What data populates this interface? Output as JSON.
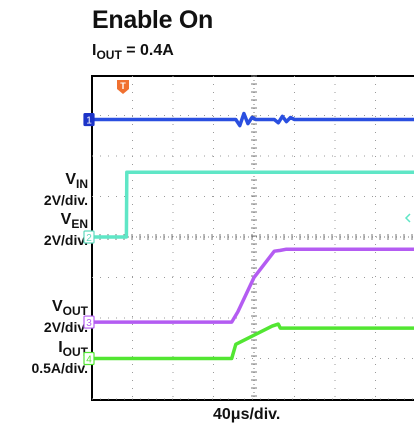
{
  "title": "Enable On",
  "subtitle": {
    "base": "I",
    "sub": "OUT",
    "rest": " = 0.4A"
  },
  "xlabel": "40μs/div.",
  "channels": [
    {
      "id": "ch1",
      "marker": "1",
      "base": "V",
      "sub": "IN",
      "scale": "2V/div.",
      "color": "#2a4fe0",
      "marker_color": "#1d34c8"
    },
    {
      "id": "ch2",
      "marker": "2",
      "base": "V",
      "sub": "EN",
      "scale": "2V/div.",
      "color": "#5fe6c6",
      "marker_color": "#5fd9bd"
    },
    {
      "id": "ch3",
      "marker": "3",
      "base": "V",
      "sub": "OUT",
      "scale": "2V/div.",
      "color": "#b45cf2",
      "marker_color": "#b45cf2"
    },
    {
      "id": "ch4",
      "marker": "4",
      "base": "I",
      "sub": "OUT",
      "scale": "0.5A/div.",
      "color": "#52e632",
      "marker_color": "#52e632"
    }
  ],
  "trigger_marker": {
    "label": "T",
    "color": "#f07030"
  },
  "chart_data": {
    "type": "line",
    "title": "Enable On",
    "xlabel": "40μs/div.",
    "x_unit": "div",
    "y_unit": "div",
    "xlim": [
      0,
      10
    ],
    "ylim": [
      -4,
      4
    ],
    "grid": true,
    "series": [
      {
        "name": "VIN",
        "scale": "2V/div.",
        "x": [
          0,
          3.55,
          3.65,
          3.75,
          3.85,
          3.95,
          4.05,
          4.5,
          4.6,
          4.7,
          4.8,
          4.9,
          5.0,
          10
        ],
        "y": [
          2.9,
          2.9,
          2.75,
          3.05,
          2.8,
          2.95,
          2.9,
          2.9,
          2.82,
          2.98,
          2.85,
          2.95,
          2.9,
          2.9
        ]
      },
      {
        "name": "VEN",
        "scale": "2V/div.",
        "x": [
          0,
          0.85,
          0.86,
          10
        ],
        "y": [
          0.0,
          0.0,
          1.6,
          1.6
        ]
      },
      {
        "name": "VOUT",
        "scale": "2V/div.",
        "x": [
          0,
          3.45,
          3.6,
          4.0,
          4.5,
          4.65,
          4.8,
          10
        ],
        "y": [
          -2.1,
          -2.1,
          -1.85,
          -1.0,
          -0.35,
          -0.33,
          -0.3,
          -0.3
        ]
      },
      {
        "name": "IOUT",
        "scale": "0.5A/div.",
        "x": [
          0,
          3.45,
          3.55,
          4.45,
          4.6,
          4.65,
          10
        ],
        "y": [
          -3.0,
          -3.0,
          -2.65,
          -2.2,
          -2.15,
          -2.25,
          -2.25
        ]
      }
    ]
  }
}
